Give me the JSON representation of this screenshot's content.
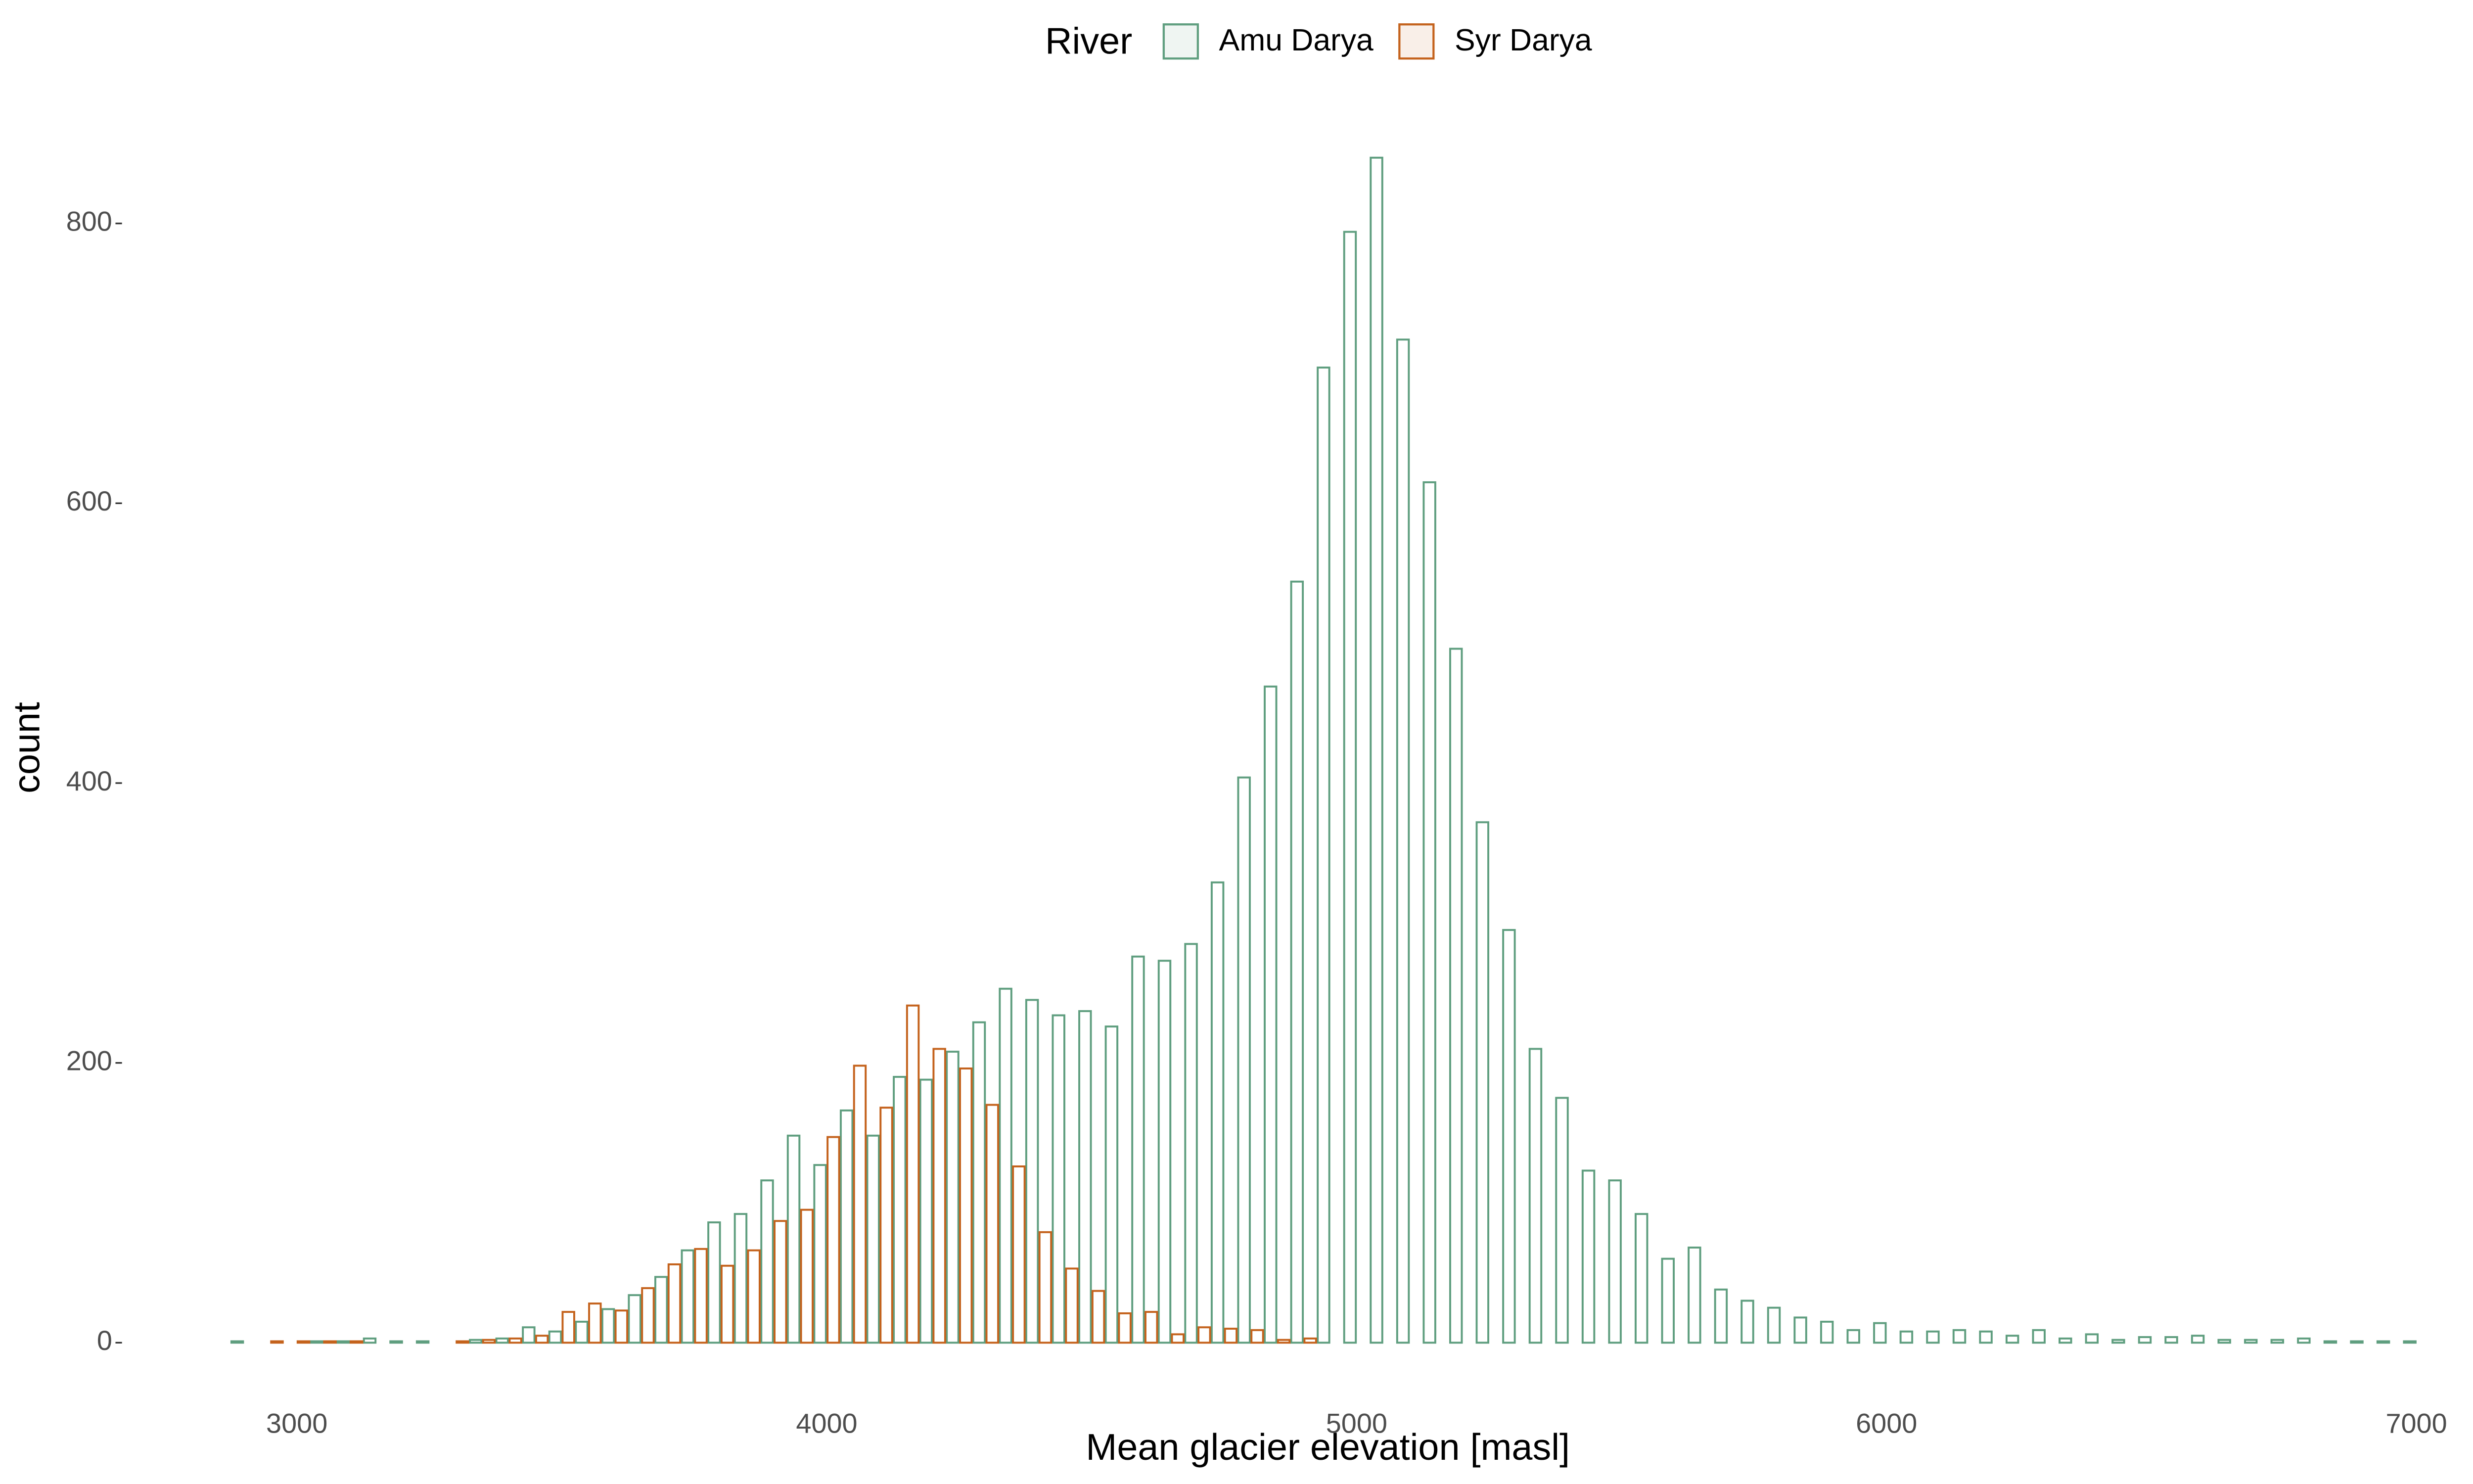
{
  "chart_data": {
    "type": "histogram",
    "xlabel": "Mean glacier elevation [masl]",
    "ylabel": "count",
    "legend_title": "River",
    "legend": "top",
    "grid": false,
    "bins": [
      2875,
      2925,
      2975,
      3025,
      3075,
      3125,
      3175,
      3225,
      3275,
      3325,
      3375,
      3425,
      3475,
      3525,
      3575,
      3625,
      3675,
      3725,
      3775,
      3825,
      3875,
      3925,
      3975,
      4025,
      4075,
      4125,
      4175,
      4225,
      4275,
      4325,
      4375,
      4425,
      4475,
      4525,
      4575,
      4625,
      4675,
      4725,
      4775,
      4825,
      4875,
      4925,
      4975,
      5025,
      5075,
      5125,
      5175,
      5225,
      5275,
      5325,
      5375,
      5425,
      5475,
      5525,
      5575,
      5625,
      5675,
      5725,
      5775,
      5825,
      5875,
      5925,
      5975,
      6025,
      6075,
      6125,
      6175,
      6225,
      6275,
      6325,
      6375,
      6425,
      6475,
      6525,
      6575,
      6625,
      6675,
      6725,
      6775,
      6825,
      6875,
      6925,
      6975,
      7025
    ],
    "series": [
      {
        "name": "Amu Darya",
        "color": "#5f9e7f",
        "values": [
          1,
          0,
          0,
          1,
          1,
          3,
          1,
          1,
          0,
          2,
          3,
          11,
          8,
          15,
          24,
          34,
          47,
          66,
          86,
          92,
          116,
          148,
          127,
          166,
          148,
          190,
          188,
          208,
          229,
          253,
          245,
          234,
          237,
          226,
          276,
          273,
          285,
          329,
          404,
          469,
          544,
          697,
          794,
          847,
          717,
          615,
          496,
          372,
          295,
          210,
          175,
          123,
          116,
          92,
          60,
          68,
          38,
          30,
          25,
          18,
          15,
          9,
          14,
          8,
          8,
          9,
          8,
          5,
          9,
          3,
          6,
          2,
          4,
          4,
          5,
          2,
          2,
          2,
          3,
          1,
          1,
          1,
          1
        ]
      },
      {
        "name": "Syr Darya",
        "color": "#c4621c",
        "values": [
          0,
          1,
          1,
          1,
          1,
          0,
          0,
          0,
          1,
          2,
          3,
          5,
          22,
          28,
          23,
          39,
          56,
          67,
          55,
          66,
          87,
          95,
          147,
          198,
          168,
          241,
          210,
          196,
          170,
          126,
          79,
          53,
          37,
          21,
          22,
          6,
          11,
          10,
          9,
          2,
          3,
          0,
          0,
          0,
          0,
          0,
          0,
          0,
          0,
          0,
          0,
          0,
          0,
          0,
          0,
          0,
          0,
          0,
          0,
          0,
          0,
          0,
          0,
          0,
          0,
          0,
          0,
          0,
          0,
          0,
          0,
          0,
          0,
          0,
          0,
          0,
          0,
          0,
          0,
          0,
          0,
          0,
          0
        ]
      }
    ],
    "xlim": [
      2670,
      7200
    ],
    "xticks": [
      3000,
      4000,
      5000,
      6000,
      7000
    ],
    "ylim": [
      -22,
      890
    ],
    "yticks": [
      0,
      200,
      400,
      600,
      800
    ]
  }
}
